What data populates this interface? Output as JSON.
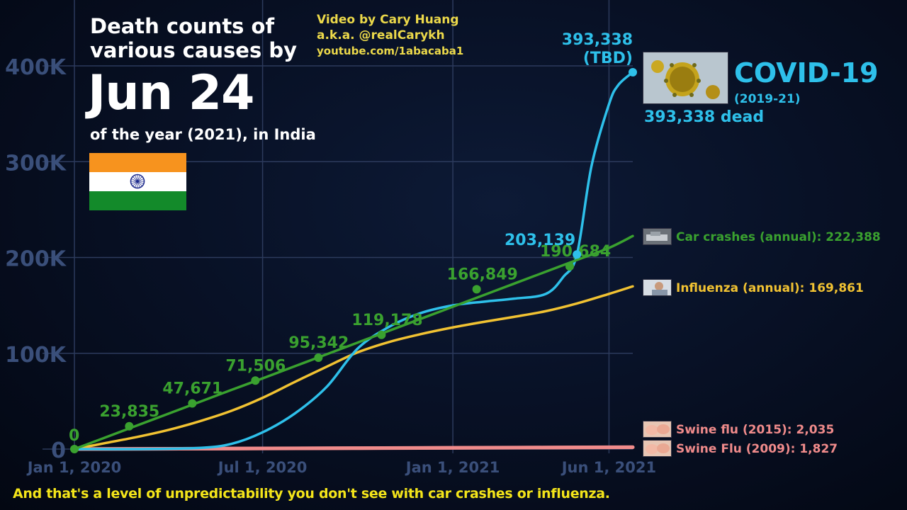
{
  "header": {
    "title_line1": "Death counts of",
    "title_line2": "various causes by",
    "date": "Jun 24",
    "subtitle": "of the year (2021), in India"
  },
  "credit": {
    "line1": "Video by Cary Huang",
    "line2": "a.k.a. @realCarykh",
    "line3": "youtube.com/1abacaba1"
  },
  "caption": "And that's a level of unpredictability you don't see with car crashes or influenza.",
  "flag": {
    "country": "India",
    "colors": [
      "#f7931e",
      "#ffffff",
      "#138a2a"
    ],
    "chakra_color": "#1d2a8c"
  },
  "thumbnails": {
    "covid": "coronavirus-image",
    "car": "car-crash-image",
    "influenza": "influenza-patient-image",
    "swine2015": "pigs-image",
    "swine2009": "pigs-image"
  },
  "chart_data": {
    "type": "line",
    "title": "Death counts of various causes by Jun 24",
    "xlabel": "",
    "ylabel": "",
    "ylim": [
      0,
      400000
    ],
    "xlim": [
      "2020-01-01",
      "2021-06-24"
    ],
    "y_ticks": [
      0,
      100000,
      200000,
      300000,
      400000
    ],
    "y_tick_labels": [
      "0",
      "100K",
      "200K",
      "300K",
      "400K"
    ],
    "x_ticks": [
      "2020-01-01",
      "2020-07-01",
      "2021-01-01",
      "2021-06-01"
    ],
    "x_tick_labels": [
      "Jan 1, 2020",
      "Jul 1, 2020",
      "Jan 1, 2021",
      "Jun 1, 2021"
    ],
    "grid": true,
    "series": [
      {
        "name": "Car crashes (annual)",
        "label": "Car crashes (annual): 222,388",
        "color": "#3aa12f",
        "x": [
          "2020-01-01",
          "2020-02-01",
          "2020-03-01",
          "2020-04-01",
          "2020-05-01",
          "2020-06-01",
          "2020-07-01",
          "2020-08-01",
          "2020-09-01",
          "2020-10-01",
          "2020-11-01",
          "2020-12-01",
          "2021-01-01",
          "2021-02-01",
          "2021-03-01",
          "2021-04-01",
          "2021-05-01",
          "2021-06-01",
          "2021-06-24"
        ],
        "y": [
          0,
          12600,
          24400,
          37000,
          49200,
          61800,
          73800,
          86400,
          99000,
          111200,
          123800,
          136000,
          148600,
          161200,
          172600,
          185200,
          197400,
          210000,
          222388
        ],
        "markers": [
          {
            "x": "2020-01-01",
            "value": 0,
            "label": "0"
          },
          {
            "x": "2020-02-23",
            "value": 23835,
            "label": "23,835"
          },
          {
            "x": "2020-04-24",
            "value": 47671,
            "label": "47,671"
          },
          {
            "x": "2020-06-24",
            "value": 71506,
            "label": "71,506"
          },
          {
            "x": "2020-08-24",
            "value": 95342,
            "label": "95,342"
          },
          {
            "x": "2020-10-24",
            "value": 119178,
            "label": "119,178"
          },
          {
            "x": "2021-01-24",
            "value": 166849,
            "label": "166,849"
          },
          {
            "x": "2021-04-24",
            "value": 190684,
            "label": "190,684"
          }
        ]
      },
      {
        "name": "Influenza (annual)",
        "label": "Influenza (annual): 169,861",
        "color": "#f1c232",
        "x": [
          "2020-01-01",
          "2020-02-01",
          "2020-03-01",
          "2020-04-01",
          "2020-05-01",
          "2020-06-01",
          "2020-07-01",
          "2020-08-01",
          "2020-09-01",
          "2020-10-01",
          "2020-11-01",
          "2020-12-01",
          "2021-01-01",
          "2021-02-01",
          "2021-03-01",
          "2021-04-01",
          "2021-05-01",
          "2021-06-01",
          "2021-06-24"
        ],
        "y": [
          0,
          6500,
          12500,
          20000,
          29000,
          40000,
          53500,
          70000,
          86000,
          101000,
          112000,
          120000,
          127000,
          133000,
          138000,
          144000,
          152000,
          162000,
          169861
        ]
      },
      {
        "name": "COVID-19",
        "label": "COVID-19",
        "years": "(2019-21)",
        "dead_label": "393,338 dead",
        "end_label": "393,338",
        "end_note": "(TBD)",
        "color": "#2ec0ea",
        "x": [
          "2020-01-01",
          "2020-03-01",
          "2020-05-01",
          "2020-06-01",
          "2020-07-01",
          "2020-08-01",
          "2020-09-01",
          "2020-10-01",
          "2020-11-01",
          "2020-12-01",
          "2021-01-01",
          "2021-02-01",
          "2021-03-01",
          "2021-04-01",
          "2021-04-18",
          "2021-05-01",
          "2021-05-15",
          "2021-06-01",
          "2021-06-10",
          "2021-06-24"
        ],
        "y": [
          0,
          30,
          1200,
          5500,
          17500,
          37000,
          65000,
          105000,
          128000,
          142000,
          150000,
          154000,
          157000,
          162000,
          180000,
          203139,
          295000,
          360000,
          380000,
          393338
        ],
        "markers": [
          {
            "x": "2021-05-01",
            "value": 203139,
            "label": "203,139"
          },
          {
            "x": "2021-06-24",
            "value": 393338,
            "label": "393,338"
          }
        ]
      },
      {
        "name": "Swine flu (2015)",
        "label": "Swine flu (2015): 2,035",
        "color": "#f08b8b",
        "x": [
          "2020-01-01",
          "2021-06-24"
        ],
        "y": [
          0,
          2035
        ]
      },
      {
        "name": "Swine Flu (2009)",
        "label": "Swine Flu (2009): 1,827",
        "color": "#f08b8b",
        "x": [
          "2020-01-01",
          "2021-06-24"
        ],
        "y": [
          0,
          1827
        ]
      }
    ]
  }
}
